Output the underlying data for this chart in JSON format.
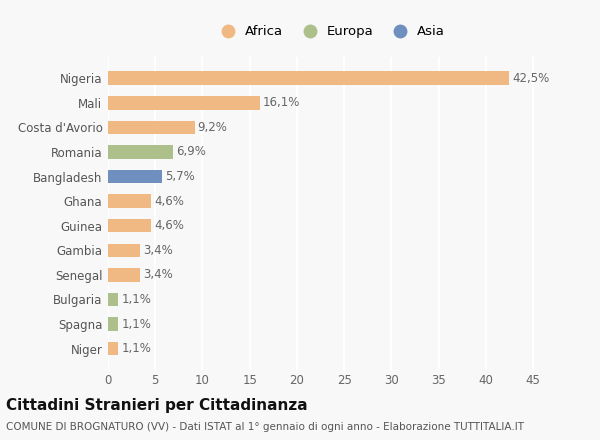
{
  "categories": [
    "Nigeria",
    "Mali",
    "Costa d'Avorio",
    "Romania",
    "Bangladesh",
    "Ghana",
    "Guinea",
    "Gambia",
    "Senegal",
    "Bulgaria",
    "Spagna",
    "Niger"
  ],
  "values": [
    42.5,
    16.1,
    9.2,
    6.9,
    5.7,
    4.6,
    4.6,
    3.4,
    3.4,
    1.1,
    1.1,
    1.1
  ],
  "labels": [
    "42,5%",
    "16,1%",
    "9,2%",
    "6,9%",
    "5,7%",
    "4,6%",
    "4,6%",
    "3,4%",
    "3,4%",
    "1,1%",
    "1,1%",
    "1,1%"
  ],
  "colors": [
    "#F0B983",
    "#F0B983",
    "#F0B983",
    "#ADBF8A",
    "#6F8FBF",
    "#F0B983",
    "#F0B983",
    "#F0B983",
    "#F0B983",
    "#ADBF8A",
    "#ADBF8A",
    "#F0B983"
  ],
  "legend_labels": [
    "Africa",
    "Europa",
    "Asia"
  ],
  "legend_colors": [
    "#F0B983",
    "#ADBF8A",
    "#6F8FBF"
  ],
  "title": "Cittadini Stranieri per Cittadinanza",
  "subtitle": "COMUNE DI BROGNATURO (VV) - Dati ISTAT al 1° gennaio di ogni anno - Elaborazione TUTTITALIA.IT",
  "xlim": [
    0,
    47
  ],
  "xticks": [
    0,
    5,
    10,
    15,
    20,
    25,
    30,
    35,
    40,
    45
  ],
  "background_color": "#F8F8F8",
  "grid_color": "#FFFFFF",
  "bar_height": 0.55,
  "label_fontsize": 8.5,
  "tick_fontsize": 8.5,
  "title_fontsize": 11,
  "subtitle_fontsize": 7.5
}
